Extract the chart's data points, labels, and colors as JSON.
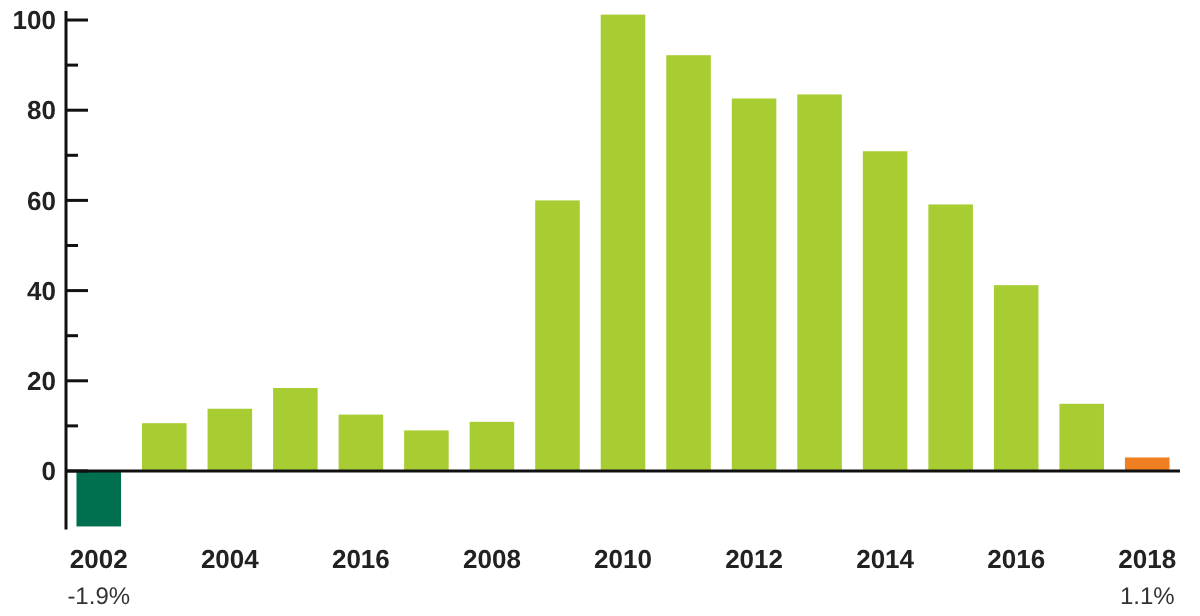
{
  "chart_data": {
    "type": "bar",
    "categories": [
      "2002",
      null,
      "2004",
      null,
      "2016",
      null,
      "2008",
      null,
      "2010",
      null,
      "2012",
      null,
      "2014",
      null,
      "2016",
      null,
      "2018"
    ],
    "values": [
      -12.3,
      10.6,
      13.8,
      18.4,
      12.5,
      9,
      10.9,
      60,
      101.2,
      92.2,
      82.6,
      83.5,
      70.9,
      59.1,
      41.2,
      14.9,
      3
    ],
    "colors": [
      "#006f4f",
      "#a8cd32",
      "#a8cd32",
      "#a8cd32",
      "#a8cd32",
      "#a8cd32",
      "#a8cd32",
      "#a8cd32",
      "#a8cd32",
      "#a8cd32",
      "#a8cd32",
      "#a8cd32",
      "#a8cd32",
      "#a8cd32",
      "#a8cd32",
      "#a8cd32",
      "#f07f22"
    ],
    "ylim": [
      -13,
      102
    ],
    "yticks": [
      0,
      {
        "value": 10,
        "label": null
      },
      20,
      {
        "value": 30,
        "label": null
      },
      40,
      {
        "value": 50,
        "label": null
      },
      60,
      {
        "value": 70,
        "label": null
      },
      80,
      {
        "value": 90,
        "label": null
      },
      100
    ],
    "annotations": [
      "-1.9%",
      "1.1%"
    ]
  }
}
